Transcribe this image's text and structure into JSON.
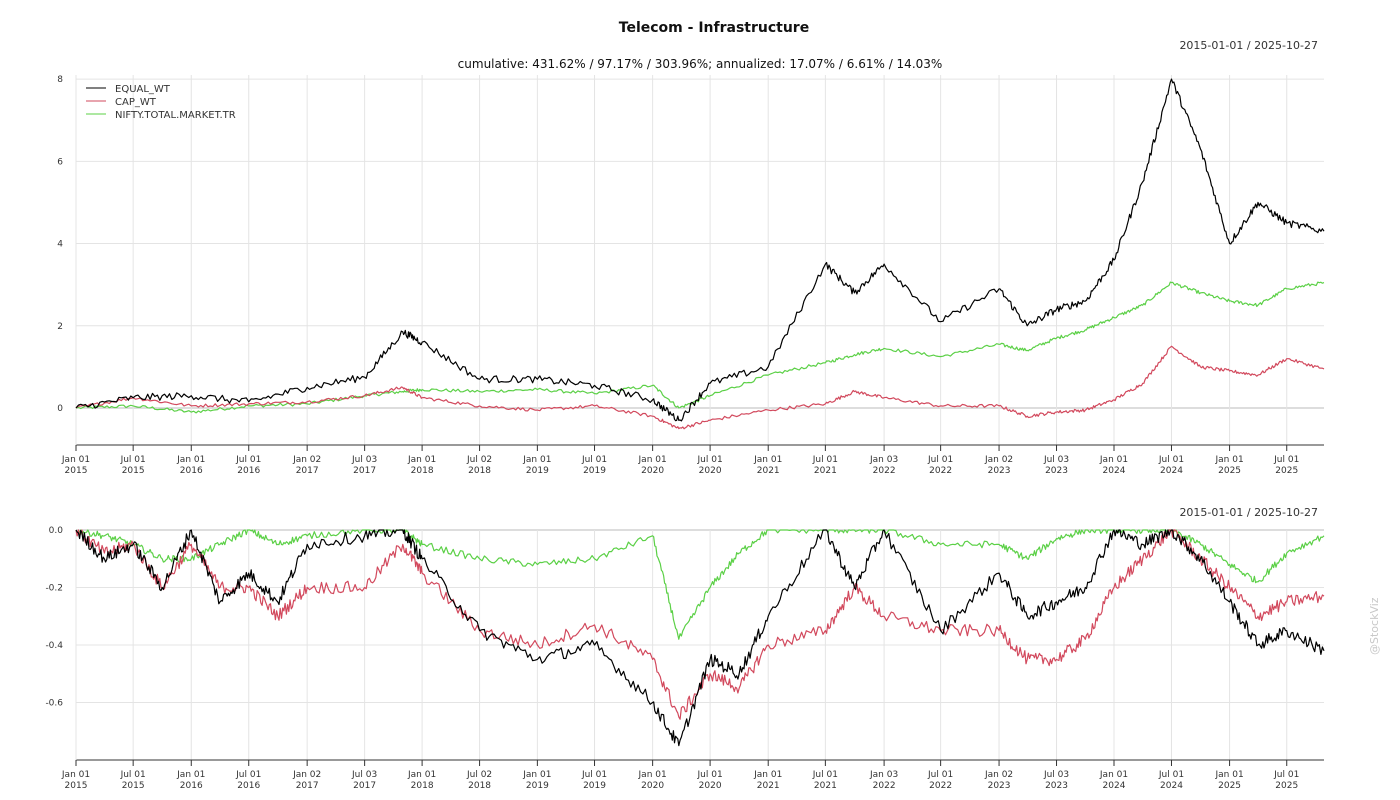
{
  "title": "Telecom - Infrastructure",
  "subtitle": "cumulative: 431.62% / 97.17% / 303.96%; annualized: 17.07% / 6.61% / 14.03%",
  "date_range": "2015-01-01 / 2025-10-27",
  "watermark": "@StockViz",
  "colors": {
    "EQUAL_WT": "#000000",
    "CAP_WT": "#d2495d",
    "NIFTY.TOTAL.MARKET.TR": "#5bd046"
  },
  "x_ticks": [
    {
      "date": "2015-01-01",
      "l1": "Jan 01",
      "l2": "2015"
    },
    {
      "date": "2015-07-01",
      "l1": "Jul 01",
      "l2": "2015"
    },
    {
      "date": "2016-01-01",
      "l1": "Jan 01",
      "l2": "2016"
    },
    {
      "date": "2016-07-01",
      "l1": "Jul 01",
      "l2": "2016"
    },
    {
      "date": "2017-01-02",
      "l1": "Jan 02",
      "l2": "2017"
    },
    {
      "date": "2017-07-03",
      "l1": "Jul 03",
      "l2": "2017"
    },
    {
      "date": "2018-01-01",
      "l1": "Jan 01",
      "l2": "2018"
    },
    {
      "date": "2018-07-02",
      "l1": "Jul 02",
      "l2": "2018"
    },
    {
      "date": "2019-01-01",
      "l1": "Jan 01",
      "l2": "2019"
    },
    {
      "date": "2019-07-01",
      "l1": "Jul 01",
      "l2": "2019"
    },
    {
      "date": "2020-01-01",
      "l1": "Jan 01",
      "l2": "2020"
    },
    {
      "date": "2020-07-01",
      "l1": "Jul 01",
      "l2": "2020"
    },
    {
      "date": "2021-01-01",
      "l1": "Jan 01",
      "l2": "2021"
    },
    {
      "date": "2021-07-01",
      "l1": "Jul 01",
      "l2": "2021"
    },
    {
      "date": "2022-01-03",
      "l1": "Jan 03",
      "l2": "2022"
    },
    {
      "date": "2022-07-01",
      "l1": "Jul 01",
      "l2": "2022"
    },
    {
      "date": "2023-01-02",
      "l1": "Jan 02",
      "l2": "2023"
    },
    {
      "date": "2023-07-03",
      "l1": "Jul 03",
      "l2": "2023"
    },
    {
      "date": "2024-01-01",
      "l1": "Jan 01",
      "l2": "2024"
    },
    {
      "date": "2024-07-01",
      "l1": "Jul 01",
      "l2": "2024"
    },
    {
      "date": "2025-01-01",
      "l1": "Jan 01",
      "l2": "2025"
    },
    {
      "date": "2025-07-01",
      "l1": "Jul 01",
      "l2": "2025"
    }
  ],
  "chart_data": [
    {
      "type": "line",
      "title": "Telecom - Infrastructure",
      "subtitle": "cumulative: 431.62% / 97.17% / 303.96%; annualized: 17.07% / 6.61% / 14.03%",
      "xlim": [
        "2015-01-01",
        "2025-10-27"
      ],
      "ylim": [
        -0.9,
        8.1
      ],
      "yticks": [
        0,
        2,
        4,
        6,
        8
      ],
      "grid": true,
      "legend": "top-left",
      "x": [
        "2015-01-01",
        "2015-07-01",
        "2016-01-01",
        "2016-07-01",
        "2017-01-02",
        "2017-07-03",
        "2017-11-01",
        "2018-01-01",
        "2018-07-02",
        "2019-01-01",
        "2019-07-01",
        "2020-01-01",
        "2020-03-24",
        "2020-07-01",
        "2021-01-01",
        "2021-07-01",
        "2021-10-01",
        "2022-01-03",
        "2022-07-01",
        "2023-01-02",
        "2023-04-01",
        "2023-07-03",
        "2023-10-02",
        "2024-01-01",
        "2024-04-01",
        "2024-07-01",
        "2024-10-01",
        "2025-01-01",
        "2025-04-01",
        "2025-07-01",
        "2025-10-27"
      ],
      "series": [
        {
          "name": "EQUAL_WT",
          "values": [
            0.0,
            0.25,
            0.3,
            0.15,
            0.5,
            0.75,
            1.85,
            1.6,
            0.7,
            0.7,
            0.55,
            0.2,
            -0.3,
            0.6,
            1.0,
            3.5,
            2.8,
            3.5,
            2.1,
            2.9,
            2.0,
            2.4,
            2.6,
            3.6,
            5.5,
            8.0,
            6.3,
            4.0,
            5.0,
            4.5,
            4.3
          ]
        },
        {
          "name": "CAP_WT",
          "values": [
            0.0,
            0.25,
            0.05,
            0.1,
            0.15,
            0.3,
            0.5,
            0.25,
            0.05,
            -0.05,
            0.05,
            -0.2,
            -0.5,
            -0.3,
            -0.05,
            0.1,
            0.4,
            0.25,
            0.05,
            0.05,
            -0.2,
            -0.1,
            -0.05,
            0.2,
            0.6,
            1.5,
            1.0,
            0.9,
            0.8,
            1.2,
            0.95
          ]
        },
        {
          "name": "NIFTY.TOTAL.MARKET.TR",
          "values": [
            0.0,
            0.05,
            -0.1,
            0.05,
            0.1,
            0.3,
            0.4,
            0.45,
            0.4,
            0.45,
            0.35,
            0.55,
            0.0,
            0.3,
            0.8,
            1.1,
            1.3,
            1.45,
            1.25,
            1.55,
            1.4,
            1.7,
            1.9,
            2.2,
            2.5,
            3.05,
            2.8,
            2.6,
            2.5,
            2.9,
            3.05
          ]
        }
      ]
    },
    {
      "type": "line",
      "xlim": [
        "2015-01-01",
        "2025-10-27"
      ],
      "ylim": [
        -0.8,
        0.0
      ],
      "yticks": [
        0.0,
        -0.2,
        -0.4,
        -0.6
      ],
      "ytick_labels": [
        "0.0",
        "-0.2",
        "-0.4",
        "-0.6"
      ],
      "grid": true,
      "x": [
        "2015-01-01",
        "2015-04-01",
        "2015-07-01",
        "2015-10-01",
        "2016-01-01",
        "2016-04-01",
        "2016-07-01",
        "2016-10-01",
        "2017-01-02",
        "2017-07-03",
        "2017-11-01",
        "2018-01-01",
        "2018-07-02",
        "2019-01-01",
        "2019-07-01",
        "2020-01-01",
        "2020-03-24",
        "2020-07-01",
        "2020-10-01",
        "2021-01-01",
        "2021-07-01",
        "2021-10-01",
        "2022-01-03",
        "2022-07-01",
        "2023-01-02",
        "2023-04-01",
        "2023-07-03",
        "2023-10-02",
        "2024-01-01",
        "2024-04-01",
        "2024-07-01",
        "2024-10-01",
        "2025-01-01",
        "2025-04-01",
        "2025-07-01",
        "2025-10-27"
      ],
      "series": [
        {
          "name": "EQUAL_WT",
          "values": [
            0.0,
            -0.1,
            -0.05,
            -0.2,
            0.0,
            -0.25,
            -0.15,
            -0.25,
            -0.05,
            -0.02,
            0.0,
            -0.1,
            -0.35,
            -0.45,
            -0.4,
            -0.6,
            -0.75,
            -0.45,
            -0.5,
            -0.3,
            0.0,
            -0.2,
            0.0,
            -0.35,
            -0.15,
            -0.3,
            -0.25,
            -0.2,
            0.0,
            -0.05,
            0.0,
            -0.1,
            -0.25,
            -0.4,
            -0.35,
            -0.42
          ]
        },
        {
          "name": "CAP_WT",
          "values": [
            0.0,
            -0.08,
            -0.05,
            -0.2,
            -0.05,
            -0.2,
            -0.2,
            -0.3,
            -0.2,
            -0.2,
            -0.05,
            -0.15,
            -0.35,
            -0.4,
            -0.33,
            -0.45,
            -0.65,
            -0.5,
            -0.55,
            -0.4,
            -0.35,
            -0.2,
            -0.3,
            -0.35,
            -0.35,
            -0.45,
            -0.45,
            -0.38,
            -0.2,
            -0.1,
            0.0,
            -0.1,
            -0.2,
            -0.3,
            -0.25,
            -0.23
          ]
        },
        {
          "name": "NIFTY.TOTAL.MARKET.TR",
          "values": [
            0.0,
            -0.02,
            -0.05,
            -0.1,
            -0.1,
            -0.05,
            0.0,
            -0.05,
            -0.02,
            0.0,
            0.0,
            -0.05,
            -0.1,
            -0.12,
            -0.1,
            -0.02,
            -0.38,
            -0.2,
            -0.08,
            0.0,
            0.0,
            0.0,
            0.0,
            -0.05,
            -0.05,
            -0.1,
            -0.03,
            0.0,
            0.0,
            0.0,
            0.0,
            -0.05,
            -0.12,
            -0.18,
            -0.08,
            -0.02
          ]
        }
      ]
    }
  ]
}
